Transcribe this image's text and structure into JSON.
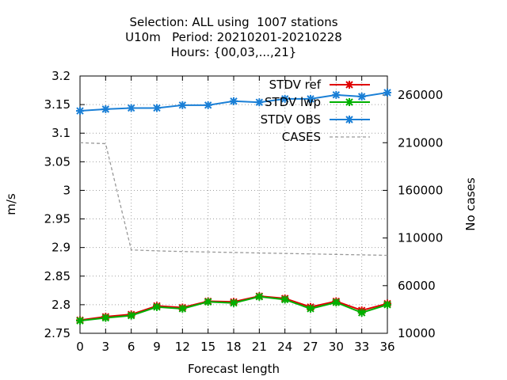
{
  "chart_data": {
    "type": "line",
    "title_lines": [
      "Selection: ALL using  1007 stations",
      "U10m   Period: 20210201-20210228",
      "Hours: {00,03,...,21}"
    ],
    "xlabel": "Forecast length",
    "ylabel": "m/s",
    "y2label": "No cases",
    "x": [
      0,
      3,
      6,
      9,
      12,
      15,
      18,
      21,
      24,
      27,
      30,
      33,
      36
    ],
    "xlim": [
      0,
      36
    ],
    "ylim": [
      2.75,
      3.2
    ],
    "y2lim": [
      10000,
      280000
    ],
    "xticks": [
      "0",
      "3",
      "6",
      "9",
      "12",
      "15",
      "18",
      "21",
      "24",
      "27",
      "30",
      "33",
      "36"
    ],
    "yticks": [
      "3.2",
      "3.15",
      "3.1",
      "3.05",
      "3",
      "2.95",
      "2.9",
      "2.85",
      "2.8",
      "2.75"
    ],
    "y2ticks": [
      "260000",
      "210000",
      "160000",
      "110000",
      "60000",
      "10000"
    ],
    "grid": true,
    "legend_position": "top-right",
    "series": [
      {
        "name": "STDV ref",
        "axis": "y",
        "color": "#e00000",
        "marker": "x",
        "values": [
          2.773,
          2.779,
          2.783,
          2.798,
          2.795,
          2.806,
          2.805,
          2.815,
          2.811,
          2.796,
          2.806,
          2.79,
          2.802
        ]
      },
      {
        "name": "STDV lwp",
        "axis": "y",
        "color": "#00b000",
        "marker": "x",
        "values": [
          2.772,
          2.777,
          2.781,
          2.796,
          2.793,
          2.805,
          2.803,
          2.814,
          2.809,
          2.793,
          2.804,
          2.786,
          2.8
        ]
      },
      {
        "name": "STDV OBS",
        "axis": "y",
        "color": "#1a7fd6",
        "marker": "x",
        "values": [
          3.139,
          3.142,
          3.144,
          3.144,
          3.149,
          3.149,
          3.156,
          3.154,
          3.16,
          3.16,
          3.167,
          3.164,
          3.171
        ]
      },
      {
        "name": "CASES",
        "axis": "y2",
        "color": "#999999",
        "dashed": true,
        "values": [
          210000,
          209000,
          97500,
          96500,
          95800,
          95300,
          94800,
          94300,
          93800,
          93300,
          92800,
          92300,
          91800
        ]
      }
    ]
  }
}
